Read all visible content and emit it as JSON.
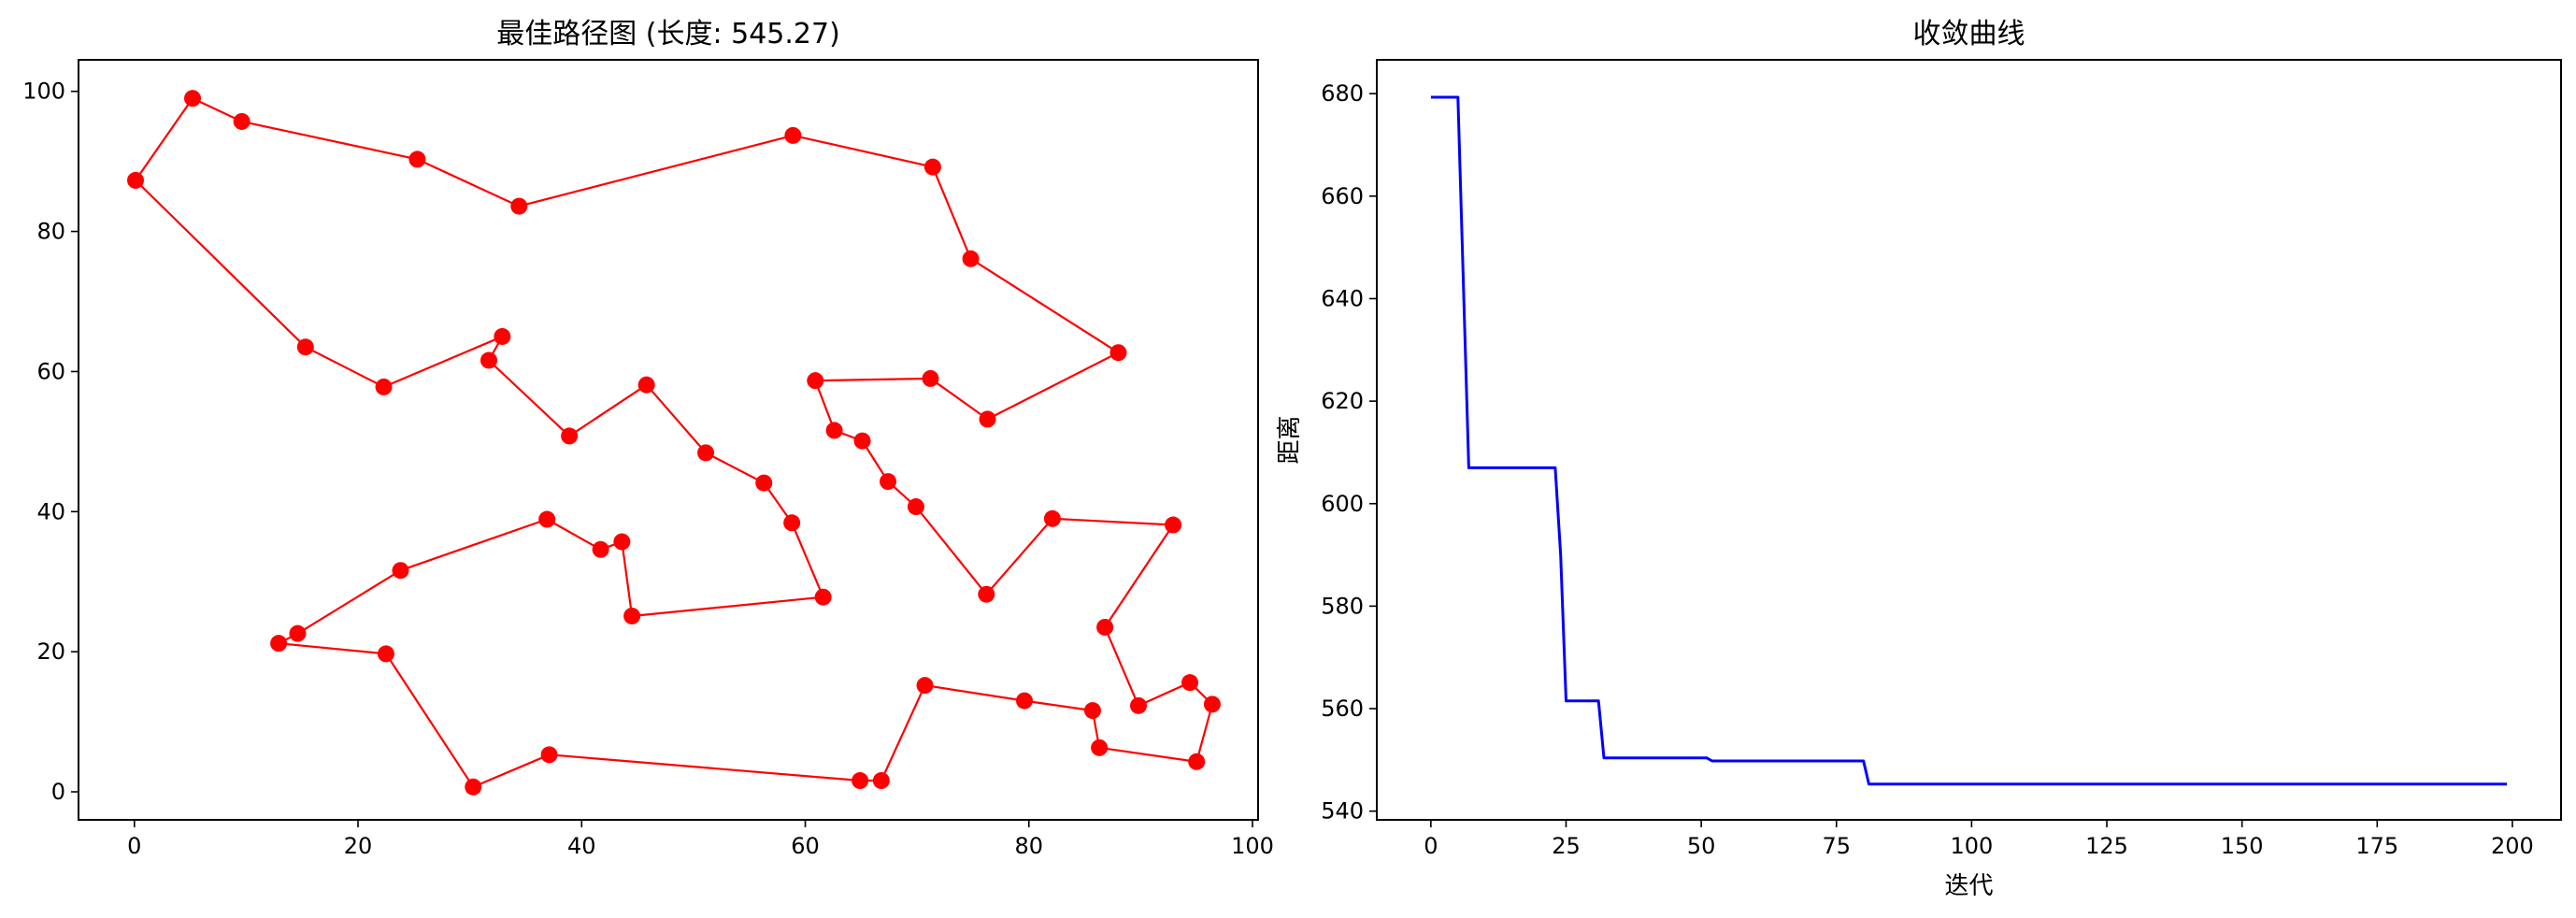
{
  "chart_data": [
    {
      "type": "line",
      "title": "最佳路径图 (长度: 545.27)",
      "xlabel": "",
      "ylabel": "",
      "xlim": [
        -5,
        100.5
      ],
      "ylim": [
        -4,
        104.5
      ],
      "xticks": [
        0,
        20,
        40,
        60,
        80,
        100
      ],
      "yticks": [
        0,
        20,
        40,
        60,
        80,
        100
      ],
      "grid": false,
      "series": [
        {
          "color": "#ff0000",
          "marker": "circle",
          "x": [
            0.1,
            5.2,
            9.6,
            25.3,
            34.4,
            58.9,
            71.4,
            74.8,
            88.0,
            76.3,
            71.2,
            60.9,
            62.6,
            65.1,
            67.4,
            69.9,
            76.2,
            82.1,
            92.9,
            86.8,
            89.8,
            94.4,
            96.4,
            95.0,
            86.3,
            85.7,
            79.6,
            70.7,
            66.8,
            64.9,
            37.1,
            30.3,
            22.5,
            12.9,
            14.6,
            23.8,
            36.9,
            41.7,
            43.6,
            44.5,
            61.6,
            58.8,
            56.3,
            51.1,
            45.8,
            38.9,
            31.7,
            32.9,
            22.3,
            15.3,
            0.1
          ],
          "y": [
            87.3,
            99.0,
            95.7,
            90.3,
            83.6,
            93.7,
            89.2,
            76.1,
            62.7,
            53.2,
            59.0,
            58.7,
            51.6,
            50.1,
            44.3,
            40.7,
            28.2,
            39.0,
            38.1,
            23.5,
            12.3,
            15.6,
            12.5,
            4.3,
            6.3,
            11.6,
            13.0,
            15.2,
            1.6,
            1.6,
            5.3,
            0.7,
            19.7,
            21.2,
            22.6,
            31.6,
            38.9,
            34.6,
            35.7,
            25.1,
            27.8,
            38.4,
            44.1,
            48.4,
            58.1,
            50.8,
            61.6,
            65.0,
            57.8,
            63.5,
            87.3
          ]
        }
      ]
    },
    {
      "type": "line",
      "title": "收敛曲线",
      "xlabel": "迭代",
      "ylabel": "距离",
      "xlim": [
        -10,
        209
      ],
      "ylim": [
        538.3,
        686.6
      ],
      "xticks": [
        0,
        25,
        50,
        75,
        100,
        125,
        150,
        175,
        200
      ],
      "yticks": [
        540,
        560,
        580,
        600,
        620,
        640,
        660,
        680
      ],
      "grid": false,
      "series": [
        {
          "color": "#0000ff",
          "x": [
            0,
            5,
            7,
            23,
            24,
            25,
            31,
            32,
            51,
            52,
            80,
            81,
            199
          ],
          "y": [
            679.3,
            679.3,
            607.0,
            607.0,
            590.0,
            561.5,
            561.5,
            550.4,
            550.4,
            549.8,
            549.8,
            545.27,
            545.27
          ]
        }
      ]
    }
  ]
}
